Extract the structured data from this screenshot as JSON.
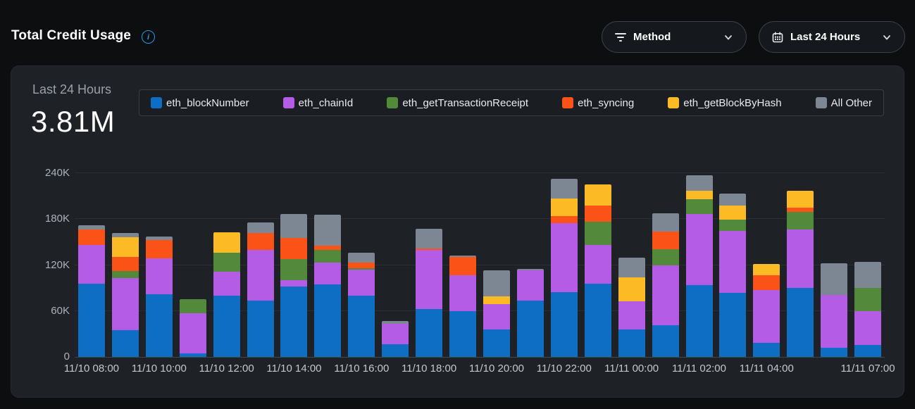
{
  "header": {
    "title": "Total Credit Usage",
    "info_icon": "info-circle-icon",
    "info_glyph": "i",
    "method_dropdown": {
      "label": "Method",
      "icon": "filter-lines-icon"
    },
    "time_dropdown": {
      "label": "Last 24 Hours",
      "icon": "calendar-icon"
    }
  },
  "card": {
    "period_label": "Last 24 Hours",
    "total_value": "3.81M"
  },
  "colors": {
    "page_bg": "#0c0e10",
    "card_bg": "#1e2126",
    "accent_blue": "#1f9cf0",
    "gridline": "#2b2e33"
  },
  "chart_data": {
    "type": "bar",
    "stacked": true,
    "title": "Total Credit Usage",
    "ylabel": "",
    "xlabel": "",
    "ylim": [
      0,
      240000
    ],
    "grid": true,
    "legend_position": "top",
    "y_ticks": [
      {
        "value": 0,
        "label": "0"
      },
      {
        "value": 60000,
        "label": "60K"
      },
      {
        "value": 120000,
        "label": "120K"
      },
      {
        "value": 180000,
        "label": "180K"
      },
      {
        "value": 240000,
        "label": "240K"
      }
    ],
    "x": [
      "11/10 08:00",
      "11/10 09:00",
      "11/10 10:00",
      "11/10 11:00",
      "11/10 12:00",
      "11/10 13:00",
      "11/10 14:00",
      "11/10 15:00",
      "11/10 16:00",
      "11/10 17:00",
      "11/10 18:00",
      "11/10 19:00",
      "11/10 20:00",
      "11/10 21:00",
      "11/10 22:00",
      "11/10 23:00",
      "11/11 00:00",
      "11/11 01:00",
      "11/11 02:00",
      "11/11 03:00",
      "11/11 04:00",
      "11/11 05:00",
      "11/11 06:00",
      "11/11 07:00"
    ],
    "x_ticks_shown": [
      {
        "index": 0,
        "label": "11/10 08:00"
      },
      {
        "index": 2,
        "label": "11/10 10:00"
      },
      {
        "index": 4,
        "label": "11/10 12:00"
      },
      {
        "index": 6,
        "label": "11/10 14:00"
      },
      {
        "index": 8,
        "label": "11/10 16:00"
      },
      {
        "index": 10,
        "label": "11/10 18:00"
      },
      {
        "index": 12,
        "label": "11/10 20:00"
      },
      {
        "index": 14,
        "label": "11/10 22:00"
      },
      {
        "index": 16,
        "label": "11/11 00:00"
      },
      {
        "index": 18,
        "label": "11/11 02:00"
      },
      {
        "index": 20,
        "label": "11/11 04:00"
      },
      {
        "index": 23,
        "label": "11/11 07:00"
      }
    ],
    "series": [
      {
        "name": "eth_blockNumber",
        "color": "#0e6ec3",
        "values": [
          96000,
          35000,
          82000,
          5000,
          80000,
          74000,
          92000,
          95000,
          80000,
          17000,
          63000,
          60000,
          36000,
          74000,
          85000,
          96000,
          36000,
          41000,
          94000,
          84000,
          18000,
          90000,
          12000,
          16000
        ]
      },
      {
        "name": "eth_chainId",
        "color": "#b55ce6",
        "values": [
          50000,
          68000,
          47000,
          52000,
          31000,
          66000,
          8000,
          28000,
          34000,
          26000,
          77000,
          47000,
          33000,
          39000,
          90000,
          50000,
          37000,
          79000,
          93000,
          81000,
          69000,
          76000,
          69000,
          44000
        ]
      },
      {
        "name": "eth_getTransactionReceipt",
        "color": "#53893a",
        "values": [
          0,
          9000,
          0,
          18000,
          25000,
          0,
          28000,
          17000,
          2000,
          0,
          0,
          0,
          0,
          0,
          0,
          31000,
          0,
          21000,
          19000,
          14000,
          0,
          23000,
          0,
          30000
        ]
      },
      {
        "name": "eth_syncing",
        "color": "#fb5317",
        "values": [
          20000,
          19000,
          24000,
          0,
          0,
          22000,
          27000,
          5000,
          7000,
          0,
          2000,
          24000,
          0,
          0,
          9000,
          21000,
          0,
          23000,
          0,
          0,
          20000,
          6000,
          0,
          0
        ]
      },
      {
        "name": "eth_getBlockByHash",
        "color": "#fcba24",
        "values": [
          0,
          25000,
          0,
          0,
          27000,
          0,
          0,
          0,
          0,
          0,
          0,
          0,
          10000,
          0,
          23000,
          27000,
          31000,
          0,
          11000,
          19000,
          14000,
          22000,
          0,
          0
        ]
      },
      {
        "name": "All Other",
        "color": "#7d8693",
        "values": [
          6000,
          6000,
          4000,
          0,
          0,
          14000,
          32000,
          41000,
          13000,
          4000,
          25000,
          1000,
          34000,
          2000,
          26000,
          0,
          26000,
          24000,
          20000,
          15000,
          0,
          0,
          41000,
          34000
        ]
      }
    ]
  }
}
